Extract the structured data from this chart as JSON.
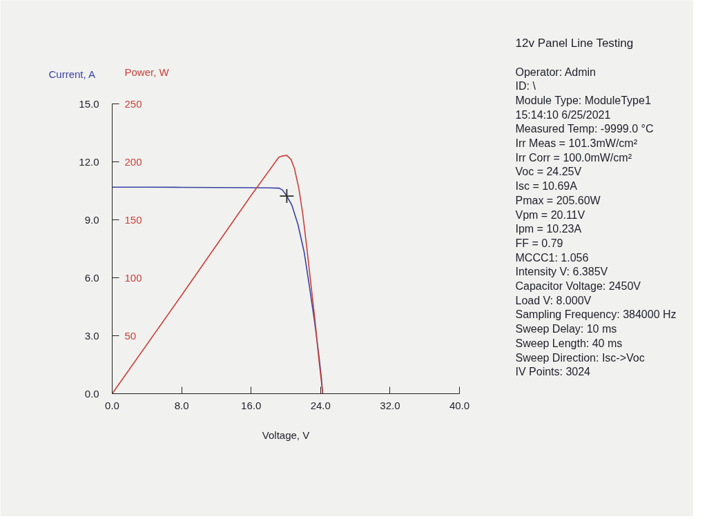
{
  "chart_data": {
    "type": "line",
    "title": "12v Panel Line Testing",
    "xlabel": "Voltage, V",
    "ylabel": "Current, A",
    "y2label": "Power, W",
    "xlim": [
      0,
      40
    ],
    "xticks": [
      {
        "value": 0,
        "label": "0.0"
      },
      {
        "value": 8,
        "label": "8.0"
      },
      {
        "value": 16,
        "label": "16.0"
      },
      {
        "value": 24,
        "label": "24.0"
      },
      {
        "value": 32,
        "label": "32.0"
      },
      {
        "value": 40,
        "label": "40.0"
      }
    ],
    "ylim": [
      0,
      15
    ],
    "yticks": [
      {
        "value": 0,
        "label": "0.0"
      },
      {
        "value": 3,
        "label": "3.0"
      },
      {
        "value": 6,
        "label": "6.0"
      },
      {
        "value": 9,
        "label": "9.0"
      },
      {
        "value": 12,
        "label": "12.0"
      },
      {
        "value": 15,
        "label": "15.0"
      }
    ],
    "y2lim": [
      0,
      250
    ],
    "y2ticks": [
      50,
      100,
      150,
      200,
      250
    ],
    "series": [
      {
        "color": "#3a42a6",
        "x": [
          0,
          4,
          8,
          12,
          16,
          18,
          19.2,
          19.6,
          20.11,
          20.7,
          21.4,
          22.1,
          22.7,
          23.3,
          23.8,
          24.1,
          24.25
        ],
        "values": [
          10.69,
          10.69,
          10.68,
          10.67,
          10.66,
          10.65,
          10.64,
          10.55,
          10.23,
          9.75,
          8.75,
          7.35,
          5.6,
          3.75,
          2.0,
          0.8,
          0
        ]
      },
      {
        "color": "#c8403a",
        "axis": "y2",
        "x": [
          0,
          8,
          16,
          19.2,
          19.6,
          20.11,
          20.6,
          21.0,
          21.5,
          21.95,
          22.4,
          22.85,
          23.35,
          23.8,
          24.25
        ],
        "values": [
          0,
          85,
          171,
          204,
          205,
          205.6,
          202,
          194,
          177,
          155,
          127,
          97,
          64,
          30,
          0
        ]
      },
      {
        "type": "scatter",
        "marker": "cross",
        "color": "#2b2b2b",
        "x": [
          20.11
        ],
        "values": [
          10.23
        ]
      }
    ],
    "annotations": [
      "Operator: Admin",
      "ID: \\",
      "Module Type: ModuleType1",
      "15:14:10 6/25/2021",
      "Measured Temp: -9999.0 °C",
      "Irr Meas = 101.3mW/cm²",
      "Irr Corr = 100.0mW/cm²",
      "Voc = 24.25V",
      "Isc = 10.69A",
      "Pmax = 205.60W",
      "Vpm = 20.11V",
      "Ipm = 10.23A",
      "FF = 0.79",
      "MCCC1: 1.056",
      "Intensity V: 6.385V",
      "Capacitor Voltage: 2450V",
      "Load V: 8.000V",
      "Sampling Frequency: 384000 Hz",
      "Sweep Delay: 10 ms",
      "Sweep Length: 40 ms",
      "Sweep Direction: Isc->Voc",
      "IV Points: 3024"
    ]
  }
}
